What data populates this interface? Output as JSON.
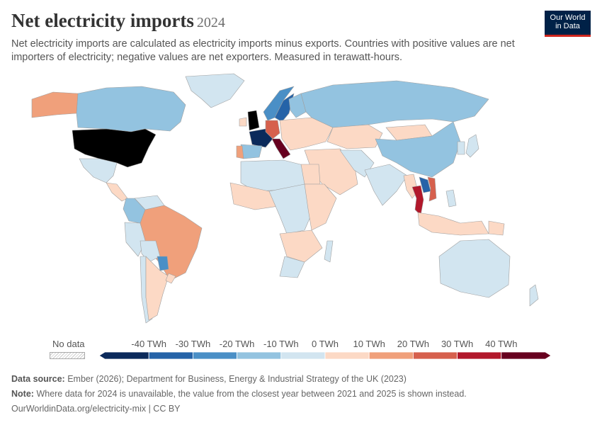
{
  "header": {
    "title": "Net electricity imports",
    "year": "2024",
    "subtitle": "Net electricity imports are calculated as electricity imports minus exports. Countries with positive values are net importers of electricity; negative values are net exporters. Measured in terawatt-hours."
  },
  "logo": {
    "line1": "Our World",
    "line2": "in Data"
  },
  "legend": {
    "no_data_label": "No data",
    "labels": [
      "-40 TWh",
      "-30 TWh",
      "-20 TWh",
      "-10 TWh",
      "0 TWh",
      "10 TWh",
      "20 TWh",
      "30 TWh",
      "40 TWh"
    ],
    "colors": [
      "#0b2a5b",
      "#2563a8",
      "#4a8fc6",
      "#93c3e0",
      "#d2e5f0",
      "#fcd9c5",
      "#f0a07b",
      "#d6604d",
      "#b2182b",
      "#67001f"
    ]
  },
  "footer": {
    "source_label": "Data source:",
    "source_text": "Ember (2026); Department for Business, Energy & Industrial Strategy of the UK (2023)",
    "note_label": "Note:",
    "note_text": "Where data for 2024 is unavailable, the value from the closest year between 2021 and 2025 is shown instead.",
    "link": "OurWorldinData.org/electricity-mix | CC BY"
  },
  "regions": [
    {
      "name": "Canada",
      "color": "#93c3e0"
    },
    {
      "name": "United States",
      "color": "#f0a07b"
    },
    {
      "name": "Alaska",
      "color": "#f0a07b"
    },
    {
      "name": "Greenland",
      "color": "#d2e5f0"
    },
    {
      "name": "Mexico",
      "color": "#d2e5f0"
    },
    {
      "name": "Central America",
      "color": "#fcd9c5"
    },
    {
      "name": "Colombia",
      "color": "#93c3e0"
    },
    {
      "name": "Venezuela",
      "color": "#d2e5f0"
    },
    {
      "name": "Peru",
      "color": "#d2e5f0"
    },
    {
      "name": "Brazil",
      "color": "#f0a07b"
    },
    {
      "name": "Bolivia",
      "color": "#d2e5f0"
    },
    {
      "name": "Paraguay",
      "color": "#4a8fc6"
    },
    {
      "name": "Argentina",
      "color": "#fcd9c5"
    },
    {
      "name": "Chile",
      "color": "#d2e5f0"
    },
    {
      "name": "Uruguay",
      "color": "#fcd9c5"
    },
    {
      "name": "Norway",
      "color": "#4a8fc6"
    },
    {
      "name": "Sweden",
      "color": "#2563a8"
    },
    {
      "name": "Finland",
      "color": "#93c3e0"
    },
    {
      "name": "United Kingdom",
      "color": "#b2182b"
    },
    {
      "name": "Ireland",
      "color": "#fcd9c5"
    },
    {
      "name": "France",
      "color": "#0b2a5b"
    },
    {
      "name": "Spain",
      "color": "#93c3e0"
    },
    {
      "name": "Portugal",
      "color": "#f0a07b"
    },
    {
      "name": "Germany",
      "color": "#d6604d"
    },
    {
      "name": "Italy",
      "color": "#67001f"
    },
    {
      "name": "Eastern Europe",
      "color": "#fcd9c5"
    },
    {
      "name": "Russia",
      "color": "#93c3e0"
    },
    {
      "name": "Kazakhstan",
      "color": "#fcd9c5"
    },
    {
      "name": "China",
      "color": "#93c3e0"
    },
    {
      "name": "Mongolia",
      "color": "#fcd9c5"
    },
    {
      "name": "India",
      "color": "#d2e5f0"
    },
    {
      "name": "Middle East",
      "color": "#fcd9c5"
    },
    {
      "name": "Iran",
      "color": "#d2e5f0"
    },
    {
      "name": "Thailand",
      "color": "#b2182b"
    },
    {
      "name": "Laos",
      "color": "#2563a8"
    },
    {
      "name": "Myanmar",
      "color": "#fcd9c5"
    },
    {
      "name": "Vietnam",
      "color": "#d6604d"
    },
    {
      "name": "Indonesia",
      "color": "#fcd9c5"
    },
    {
      "name": "Japan",
      "color": "#d2e5f0"
    },
    {
      "name": "Korea",
      "color": "#d2e5f0"
    },
    {
      "name": "Philippines",
      "color": "#d2e5f0"
    },
    {
      "name": "Papua New Guinea",
      "color": "#fcd9c5"
    },
    {
      "name": "Australia",
      "color": "#d2e5f0"
    },
    {
      "name": "New Zealand",
      "color": "#d2e5f0"
    },
    {
      "name": "North Africa",
      "color": "#d2e5f0"
    },
    {
      "name": "Egypt",
      "color": "#fcd9c5"
    },
    {
      "name": "West Africa",
      "color": "#fcd9c5"
    },
    {
      "name": "Central Africa",
      "color": "#d2e5f0"
    },
    {
      "name": "East Africa",
      "color": "#fcd9c5"
    },
    {
      "name": "Southern Africa",
      "color": "#fcd9c5"
    },
    {
      "name": "South Africa",
      "color": "#d2e5f0"
    },
    {
      "name": "Madagascar",
      "color": "#d2e5f0"
    }
  ]
}
